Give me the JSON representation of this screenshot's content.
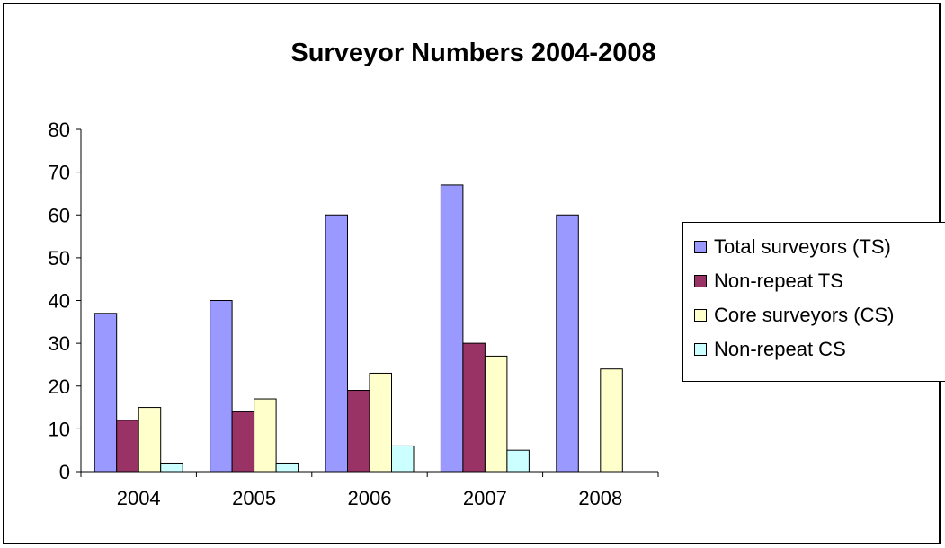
{
  "chart_data": {
    "type": "bar",
    "title": "Surveyor Numbers 2004-2008",
    "categories": [
      "2004",
      "2005",
      "2006",
      "2007",
      "2008"
    ],
    "ylim": [
      0,
      80
    ],
    "yticks": [
      0,
      10,
      20,
      30,
      40,
      50,
      60,
      70,
      80
    ],
    "grid": false,
    "legend_position": "right",
    "series": [
      {
        "name": "Total surveyors (TS)",
        "color": "#9999ff",
        "values": [
          37,
          40,
          60,
          67,
          60
        ]
      },
      {
        "name": "Non-repeat TS",
        "color": "#993366",
        "values": [
          12,
          14,
          19,
          30,
          null
        ]
      },
      {
        "name": "Core surveyors (CS)",
        "color": "#ffffcc",
        "values": [
          15,
          17,
          23,
          27,
          24
        ]
      },
      {
        "name": "Non-repeat CS",
        "color": "#ccffff",
        "values": [
          2,
          2,
          6,
          5,
          null
        ]
      }
    ]
  }
}
